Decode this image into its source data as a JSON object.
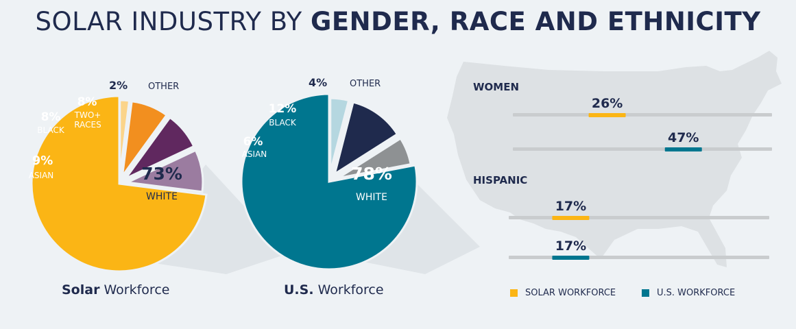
{
  "title": {
    "light": "SOLAR INDUSTRY BY ",
    "bold": "GENDER, RACE AND ETHNICITY"
  },
  "colors": {
    "background": "#eef2f5",
    "navy": "#1f2a4d",
    "solar": "#fbb515",
    "us": "#00768f",
    "map": "#dde1e4",
    "track": "#c9ccce"
  },
  "chart_data": [
    {
      "type": "pie",
      "caption_bold": "Solar",
      "caption_rest": " Workforce",
      "slices": [
        {
          "pct": "73%",
          "value": 73,
          "label": "WHITE",
          "color": "#fbb515"
        },
        {
          "pct": "9%",
          "value": 9,
          "label": "ASIAN",
          "color": "#9b7ca0"
        },
        {
          "pct": "8%",
          "value": 8,
          "label": "BLACK",
          "color": "#60285f"
        },
        {
          "pct": "8%",
          "value": 8,
          "label": "TWO+ RACES",
          "color": "#f28f1f"
        },
        {
          "pct": "2%",
          "value": 2,
          "label": "OTHER",
          "color": "#fbd48a"
        }
      ]
    },
    {
      "type": "pie",
      "caption_bold": "U.S.",
      "caption_rest": " Workforce",
      "slices": [
        {
          "pct": "78%",
          "value": 78,
          "label": "WHITE",
          "color": "#00768f"
        },
        {
          "pct": "6%",
          "value": 6,
          "label": "ASIAN",
          "color": "#8e9193"
        },
        {
          "pct": "12%",
          "value": 12,
          "label": "BLACK",
          "color": "#1f2a4d"
        },
        {
          "pct": "4%",
          "value": 4,
          "label": "OTHER",
          "color": "#b5d7e0"
        }
      ]
    },
    {
      "type": "bar",
      "groups": [
        {
          "label": "WOMEN",
          "bars": [
            {
              "series": "SOLAR WORKFORCE",
              "value": 26,
              "text": "26%"
            },
            {
              "series": "U.S. WORKFORCE",
              "value": 47,
              "text": "47%"
            }
          ]
        },
        {
          "label": "HISPANIC",
          "bars": [
            {
              "series": "SOLAR WORKFORCE",
              "value": 17,
              "text": "17%"
            },
            {
              "series": "U.S. WORKFORCE",
              "value": 17,
              "text": "17%"
            }
          ]
        }
      ],
      "legend": [
        {
          "name": "SOLAR WORKFORCE",
          "color": "#fbb515"
        },
        {
          "name": "U.S. WORKFORCE",
          "color": "#00768f"
        }
      ]
    }
  ]
}
